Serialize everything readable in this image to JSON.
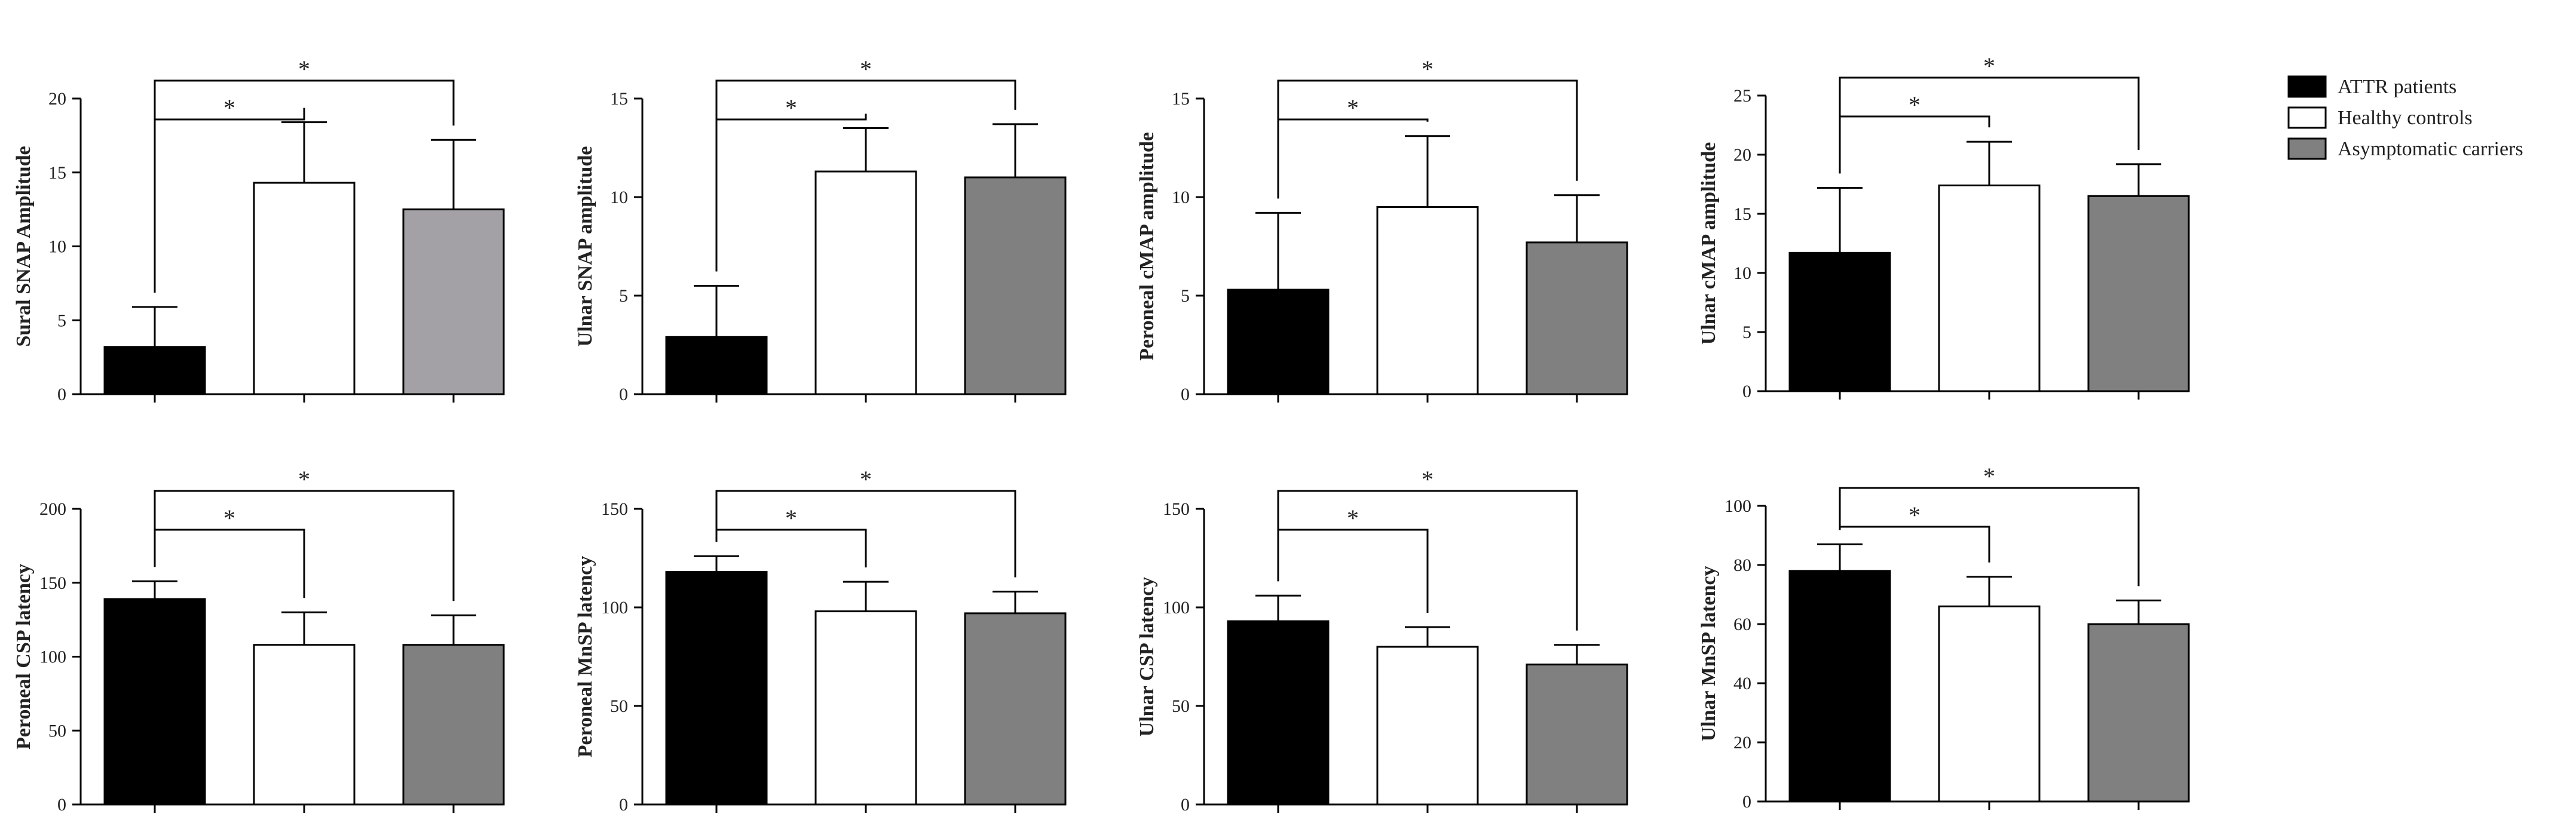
{
  "legend": {
    "items": [
      {
        "label": "ATTR patients",
        "color": "#000000"
      },
      {
        "label": "Healthy controls",
        "color": "#ffffff"
      },
      {
        "label": "Asymptomatic carriers",
        "color": "#808080"
      }
    ]
  },
  "chart_data": [
    {
      "type": "bar",
      "categories": [
        "ATTR patients",
        "Healthy controls",
        "Asymptomatic carriers"
      ],
      "ylabel": "Sural SNAP Amplitude",
      "ylim": [
        0,
        20
      ],
      "yticks": [
        0,
        5,
        10,
        15,
        20
      ],
      "values": [
        3.2,
        14.3,
        12.5
      ],
      "errors": [
        2.7,
        4.1,
        4.7
      ],
      "colors": [
        "#000000",
        "#ffffff",
        "#a3a1a6"
      ],
      "significance": [
        {
          "from": 0,
          "to": 1,
          "label": "*"
        },
        {
          "from": 0,
          "to": 2,
          "label": "*"
        }
      ]
    },
    {
      "type": "bar",
      "categories": [
        "ATTR patients",
        "Healthy controls",
        "Asymptomatic carriers"
      ],
      "ylabel": "Ulnar SNAP amplitude",
      "ylim": [
        0,
        15
      ],
      "yticks": [
        0,
        5,
        10,
        15
      ],
      "values": [
        2.9,
        11.3,
        11.0
      ],
      "errors": [
        2.6,
        2.2,
        2.7
      ],
      "colors": [
        "#000000",
        "#ffffff",
        "#808080"
      ],
      "significance": [
        {
          "from": 0,
          "to": 1,
          "label": "*"
        },
        {
          "from": 0,
          "to": 2,
          "label": "*"
        }
      ]
    },
    {
      "type": "bar",
      "categories": [
        "ATTR patients",
        "Healthy controls",
        "Asymptomatic carriers"
      ],
      "ylabel": "Peroneal cMAP amplitude",
      "ylim": [
        0,
        15
      ],
      "yticks": [
        0,
        5,
        10,
        15
      ],
      "values": [
        5.3,
        9.5,
        7.7
      ],
      "errors": [
        3.9,
        3.6,
        2.4
      ],
      "colors": [
        "#000000",
        "#ffffff",
        "#808080"
      ],
      "significance": [
        {
          "from": 0,
          "to": 1,
          "label": "*"
        },
        {
          "from": 0,
          "to": 2,
          "label": "*"
        }
      ]
    },
    {
      "type": "bar",
      "categories": [
        "ATTR patients",
        "Healthy controls",
        "Asymptomatic carriers"
      ],
      "ylabel": "Ulnar cMAP amplitude",
      "ylim": [
        0,
        25
      ],
      "yticks": [
        0,
        5,
        10,
        15,
        20,
        25
      ],
      "values": [
        11.7,
        17.4,
        16.5
      ],
      "errors": [
        5.5,
        3.7,
        2.7
      ],
      "colors": [
        "#000000",
        "#ffffff",
        "#808080"
      ],
      "significance": [
        {
          "from": 0,
          "to": 1,
          "label": "*"
        },
        {
          "from": 0,
          "to": 2,
          "label": "*"
        }
      ]
    },
    {
      "type": "bar",
      "categories": [
        "ATTR patients",
        "Healthy controls",
        "Asymptomatic carriers"
      ],
      "ylabel": "Peroneal CSP latency",
      "ylim": [
        0,
        200
      ],
      "yticks": [
        0,
        50,
        100,
        150,
        200
      ],
      "values": [
        139,
        108,
        108
      ],
      "errors": [
        12,
        22,
        20
      ],
      "colors": [
        "#000000",
        "#ffffff",
        "#808080"
      ],
      "significance": [
        {
          "from": 0,
          "to": 1,
          "label": "*"
        },
        {
          "from": 0,
          "to": 2,
          "label": "*"
        }
      ]
    },
    {
      "type": "bar",
      "categories": [
        "ATTR patients",
        "Healthy controls",
        "Asymptomatic carriers"
      ],
      "ylabel": "Peroneal MnSP latency",
      "ylim": [
        0,
        150
      ],
      "yticks": [
        0,
        50,
        100,
        150
      ],
      "values": [
        118,
        98,
        97
      ],
      "errors": [
        8,
        15,
        11
      ],
      "colors": [
        "#000000",
        "#ffffff",
        "#808080"
      ],
      "significance": [
        {
          "from": 0,
          "to": 1,
          "label": "*"
        },
        {
          "from": 0,
          "to": 2,
          "label": "*"
        }
      ]
    },
    {
      "type": "bar",
      "categories": [
        "ATTR patients",
        "Healthy controls",
        "Asymptomatic carriers"
      ],
      "ylabel": "Ulnar CSP latency",
      "ylim": [
        0,
        150
      ],
      "yticks": [
        0,
        50,
        100,
        150
      ],
      "values": [
        93,
        80,
        71
      ],
      "errors": [
        13,
        10,
        10
      ],
      "colors": [
        "#000000",
        "#ffffff",
        "#808080"
      ],
      "significance": [
        {
          "from": 0,
          "to": 1,
          "label": "*"
        },
        {
          "from": 0,
          "to": 2,
          "label": "*"
        }
      ]
    },
    {
      "type": "bar",
      "categories": [
        "ATTR patients",
        "Healthy controls",
        "Asymptomatic carriers"
      ],
      "ylabel": "Ulnar MnSP latency",
      "ylim": [
        0,
        100
      ],
      "yticks": [
        0,
        20,
        40,
        60,
        80,
        100
      ],
      "values": [
        78,
        66,
        60
      ],
      "errors": [
        9,
        10,
        8
      ],
      "colors": [
        "#000000",
        "#ffffff",
        "#808080"
      ],
      "significance": [
        {
          "from": 0,
          "to": 1,
          "label": "*"
        },
        {
          "from": 0,
          "to": 2,
          "label": "*"
        }
      ]
    }
  ]
}
